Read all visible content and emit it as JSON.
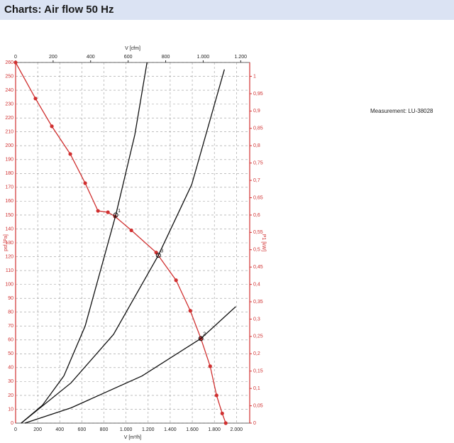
{
  "header": {
    "title": "Charts: Air flow 50 Hz"
  },
  "measurement": "Measurement: LU-38028",
  "chart_data": {
    "type": "line",
    "xlabel": "V [m³/h]",
    "x2label": "V [cfm]",
    "ylabel": "psf [Pa]",
    "y2label": "P1 [kW]",
    "xlim": [
      0,
      2120
    ],
    "xticks": [
      0,
      200,
      400,
      600,
      800,
      {
        "value": 1000,
        "label": "1.000"
      },
      {
        "value": 1200,
        "label": "1.200"
      },
      {
        "value": 1400,
        "label": "1.400"
      },
      {
        "value": 1600,
        "label": "1.600"
      },
      {
        "value": 1800,
        "label": "1.800"
      },
      {
        "value": 2000,
        "label": "2.000"
      }
    ],
    "x2lim": [
      0,
      1248
    ],
    "x2ticks": [
      0,
      200,
      400,
      600,
      800,
      {
        "value": 1000,
        "label": "1.000"
      },
      {
        "value": 1200,
        "label": "1.200"
      }
    ],
    "ylim": [
      0,
      260
    ],
    "yticks": [
      0,
      10,
      20,
      30,
      40,
      50,
      60,
      70,
      80,
      90,
      100,
      110,
      120,
      130,
      140,
      150,
      160,
      170,
      180,
      190,
      200,
      210,
      220,
      230,
      240,
      250,
      260
    ],
    "y2lim": [
      0,
      1.04
    ],
    "y2ticks": [
      0,
      {
        "value": 0.05,
        "label": "0,05"
      },
      {
        "value": 0.1,
        "label": "0,1"
      },
      {
        "value": 0.15,
        "label": "0,15"
      },
      {
        "value": 0.2,
        "label": "0,2"
      },
      {
        "value": 0.25,
        "label": "0,25"
      },
      {
        "value": 0.3,
        "label": "0,3"
      },
      {
        "value": 0.35,
        "label": "0,35"
      },
      {
        "value": 0.4,
        "label": "0,4"
      },
      {
        "value": 0.45,
        "label": "0,45"
      },
      {
        "value": 0.5,
        "label": "0,5"
      },
      {
        "value": 0.55,
        "label": "0,55"
      },
      {
        "value": 0.6,
        "label": "0,6"
      },
      {
        "value": 0.65,
        "label": "0,65"
      },
      {
        "value": 0.7,
        "label": "0,7"
      },
      {
        "value": 0.75,
        "label": "0,75"
      },
      {
        "value": 0.8,
        "label": "0,8"
      },
      {
        "value": 0.85,
        "label": "0,85"
      },
      {
        "value": 0.9,
        "label": "0,9"
      },
      {
        "value": 0.95,
        "label": "0,95"
      },
      1
    ],
    "grid": true,
    "series": [
      {
        "color": "#d03030",
        "markers": true,
        "x": [
          0,
          180,
          328,
          495,
          630,
          746,
          836,
          900,
          1048,
          1273,
          1453,
          1582,
          1678,
          1762,
          1820,
          1871,
          1903
        ],
        "values": [
          260,
          234,
          214,
          194,
          173,
          153,
          152,
          149,
          139,
          123,
          103,
          81,
          61,
          41,
          20,
          7,
          0
        ]
      },
      {
        "color": "#111111",
        "markers": false,
        "x": [
          51,
          244,
          437,
          630,
          907,
          1080,
          1190
        ],
        "values": [
          0,
          13,
          34,
          70,
          150,
          208,
          260
        ]
      },
      {
        "color": "#111111",
        "markers": false,
        "x": [
          51,
          502,
          887,
          1293,
          1595,
          1891
        ],
        "values": [
          0,
          29,
          64,
          121,
          172,
          255
        ]
      },
      {
        "color": "#111111",
        "markers": false,
        "x": [
          84,
          502,
          1145,
          1678,
          1994
        ],
        "values": [
          0,
          11,
          34,
          61,
          84
        ]
      }
    ],
    "annotations": [
      {
        "text": "1",
        "x": 907,
        "y": 150
      },
      {
        "text": "2",
        "x": 1678,
        "y": 61
      },
      {
        "text": "3",
        "x": 1293,
        "y": 121
      }
    ]
  }
}
